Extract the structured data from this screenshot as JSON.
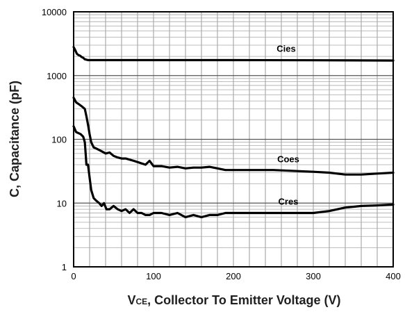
{
  "chart_data": {
    "type": "line",
    "xlabel_prefix": "V",
    "xlabel_sub": "CE",
    "xlabel_rest": ", Collector To Emitter Voltage (V)",
    "ylabel": "C, Capacitance (pF)",
    "xlim": [
      0,
      400
    ],
    "ylim": [
      1,
      10000
    ],
    "yscale": "log",
    "grid": true,
    "x_ticks": [
      "0",
      "100",
      "200",
      "300",
      "400"
    ],
    "y_ticks": [
      "1",
      "10",
      "100",
      "1000",
      "10000"
    ],
    "series": [
      {
        "name": "Cies",
        "color": "#000000",
        "points": [
          [
            0,
            2800
          ],
          [
            2,
            2500
          ],
          [
            4,
            2200
          ],
          [
            6,
            2100
          ],
          [
            8,
            2050
          ],
          [
            10,
            1950
          ],
          [
            12,
            1900
          ],
          [
            14,
            1800
          ],
          [
            18,
            1750
          ],
          [
            40,
            1750
          ],
          [
            100,
            1750
          ],
          [
            200,
            1750
          ],
          [
            300,
            1740
          ],
          [
            400,
            1720
          ]
        ]
      },
      {
        "name": "Coes",
        "color": "#000000",
        "points": [
          [
            0,
            450
          ],
          [
            3,
            380
          ],
          [
            6,
            360
          ],
          [
            10,
            330
          ],
          [
            14,
            300
          ],
          [
            16,
            230
          ],
          [
            18,
            170
          ],
          [
            20,
            120
          ],
          [
            22,
            90
          ],
          [
            25,
            75
          ],
          [
            30,
            70
          ],
          [
            35,
            65
          ],
          [
            40,
            60
          ],
          [
            45,
            62
          ],
          [
            50,
            55
          ],
          [
            55,
            52
          ],
          [
            60,
            50
          ],
          [
            65,
            50
          ],
          [
            70,
            48
          ],
          [
            75,
            46
          ],
          [
            80,
            44
          ],
          [
            85,
            42
          ],
          [
            90,
            40
          ],
          [
            95,
            46
          ],
          [
            100,
            38
          ],
          [
            110,
            38
          ],
          [
            120,
            36
          ],
          [
            130,
            37
          ],
          [
            140,
            35
          ],
          [
            150,
            36
          ],
          [
            160,
            36
          ],
          [
            170,
            37
          ],
          [
            180,
            35
          ],
          [
            190,
            33
          ],
          [
            200,
            33
          ],
          [
            250,
            33
          ],
          [
            300,
            31
          ],
          [
            320,
            30
          ],
          [
            340,
            28
          ],
          [
            360,
            28
          ],
          [
            380,
            29
          ],
          [
            400,
            30
          ]
        ]
      },
      {
        "name": "Cres",
        "color": "#000000",
        "points": [
          [
            0,
            160
          ],
          [
            3,
            130
          ],
          [
            6,
            125
          ],
          [
            9,
            120
          ],
          [
            12,
            110
          ],
          [
            14,
            90
          ],
          [
            15,
            60
          ],
          [
            16,
            40
          ],
          [
            18,
            40
          ],
          [
            20,
            25
          ],
          [
            22,
            16
          ],
          [
            25,
            12
          ],
          [
            28,
            11
          ],
          [
            32,
            10
          ],
          [
            35,
            9
          ],
          [
            38,
            10
          ],
          [
            41,
            8
          ],
          [
            45,
            8
          ],
          [
            50,
            9
          ],
          [
            55,
            8
          ],
          [
            60,
            7.5
          ],
          [
            65,
            8
          ],
          [
            70,
            7
          ],
          [
            75,
            8
          ],
          [
            80,
            7
          ],
          [
            85,
            7
          ],
          [
            90,
            6.5
          ],
          [
            95,
            6.5
          ],
          [
            100,
            7
          ],
          [
            110,
            7
          ],
          [
            120,
            6.5
          ],
          [
            130,
            7
          ],
          [
            140,
            6
          ],
          [
            150,
            6.5
          ],
          [
            160,
            6
          ],
          [
            170,
            6.5
          ],
          [
            180,
            6.5
          ],
          [
            190,
            7
          ],
          [
            200,
            7
          ],
          [
            250,
            7
          ],
          [
            300,
            7
          ],
          [
            320,
            7.5
          ],
          [
            340,
            8.5
          ],
          [
            360,
            9
          ],
          [
            380,
            9.2
          ],
          [
            400,
            9.5
          ]
        ]
      }
    ]
  }
}
